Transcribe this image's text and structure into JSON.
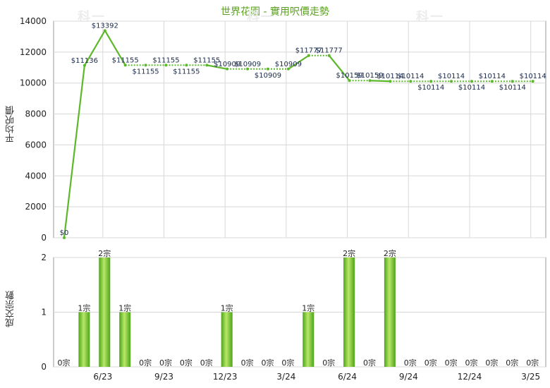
{
  "watermark": "科一",
  "colors": {
    "line": "#5cb82a",
    "bar_dark": "#4ea31a",
    "bar_light": "#b8e868",
    "grid": "#d8d8d8",
    "title": "#5aa01e"
  },
  "chart_data": [
    {
      "type": "line",
      "title": "世界花園 - 實用呎價走勢",
      "ylabel": "平均呎價",
      "ylim": [
        0,
        14000
      ],
      "yticks": [
        "0",
        "2000",
        "4000",
        "6000",
        "8000",
        "10000",
        "12000",
        "14000"
      ],
      "x_tick_labels": [
        "6/23",
        "9/23",
        "12/23",
        "3/24",
        "6/24",
        "9/24",
        "12/24",
        "3/25"
      ],
      "grid": true,
      "series": [
        {
          "values": [
            0,
            11136,
            13392,
            11155,
            11155,
            11155,
            11155,
            11155,
            10909,
            10909,
            10909,
            10909,
            11777,
            11777,
            10159,
            10159,
            10114,
            10114,
            10114,
            10114,
            10114,
            10114,
            10114,
            10114
          ],
          "labels": [
            "$0",
            "$11136",
            "$13392",
            "$11155",
            "$11155",
            "$11155",
            "$11155",
            "$11155",
            "$10909",
            "$10909",
            "$10909",
            "$10909",
            "$11777",
            "$11777",
            "$10159",
            "$10159",
            "$10114",
            "$10114",
            "$10114",
            "$10114",
            "$10114",
            "$10114",
            "$10114",
            "$10114"
          ]
        }
      ]
    },
    {
      "type": "bar",
      "ylabel": "成交宗數",
      "ylim": [
        0,
        2
      ],
      "yticks": [
        "0",
        "1",
        "2"
      ],
      "x_tick_labels": [
        "6/23",
        "9/23",
        "12/23",
        "3/24",
        "6/24",
        "9/24",
        "12/24",
        "3/25"
      ],
      "grid": true,
      "values": [
        0,
        1,
        2,
        1,
        0,
        0,
        0,
        0,
        1,
        0,
        0,
        0,
        1,
        0,
        2,
        0,
        2,
        0,
        0,
        0,
        0,
        0,
        0,
        0
      ],
      "labels": [
        "0宗",
        "1宗",
        "2宗",
        "1宗",
        "0宗",
        "0宗",
        "0宗",
        "0宗",
        "1宗",
        "0宗",
        "0宗",
        "0宗",
        "1宗",
        "0宗",
        "2宗",
        "0宗",
        "2宗",
        "0宗",
        "0宗",
        "0宗",
        "0宗",
        "0宗",
        "0宗",
        "0宗"
      ]
    }
  ]
}
